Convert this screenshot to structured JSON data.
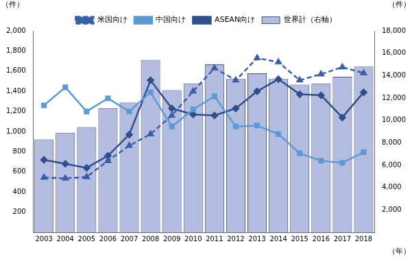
{
  "chart_data": {
    "type": "bar",
    "y_label": "（件）",
    "y2_label": "（件）",
    "x_label": "（年）",
    "categories": [
      "2003",
      "2004",
      "2005",
      "2006",
      "2007",
      "2008",
      "2009",
      "2010",
      "2011",
      "2012",
      "2013",
      "2014",
      "2015",
      "2016",
      "2017",
      "2018"
    ],
    "series": [
      {
        "name": "世界計（右軸）",
        "type": "bar",
        "axis": "y2",
        "color": "#b4bde0",
        "values": [
          8300,
          8900,
          9400,
          11100,
          11600,
          15400,
          12700,
          13300,
          15000,
          13700,
          14200,
          13700,
          13200,
          13300,
          13900,
          14800
        ]
      },
      {
        "name": "米国向け",
        "type": "line",
        "color": "#3a5fa8",
        "line_style": "dashed",
        "marker": "triangle",
        "values": [
          545,
          535,
          550,
          710,
          860,
          975,
          1160,
          1400,
          1630,
          1510,
          1730,
          1690,
          1510,
          1570,
          1640,
          1580
        ]
      },
      {
        "name": "中国向け",
        "type": "line",
        "color": "#5b9bd5",
        "line_style": "solid",
        "marker": "square",
        "values": [
          1260,
          1440,
          1200,
          1330,
          1200,
          1390,
          1050,
          1220,
          1350,
          1050,
          1060,
          975,
          785,
          710,
          690,
          795
        ]
      },
      {
        "name": "ASEAN向け",
        "type": "line",
        "color": "#2f4e8c",
        "line_style": "solid",
        "marker": "diamond",
        "values": [
          720,
          680,
          640,
          760,
          970,
          1510,
          1230,
          1170,
          1160,
          1230,
          1400,
          1520,
          1370,
          1360,
          1140,
          1390
        ]
      }
    ],
    "ylim": [
      0,
      2000
    ],
    "yticks": [
      200,
      400,
      600,
      800,
      {
        "value": 1000,
        "label": "1,000"
      },
      {
        "value": 1200,
        "label": "1,200"
      },
      {
        "value": 1400,
        "label": "1,400"
      },
      {
        "value": 1600,
        "label": "1,600"
      },
      {
        "value": 1800,
        "label": "1,800"
      },
      {
        "value": 2000,
        "label": "2,000"
      }
    ],
    "y2lim": [
      0,
      18000
    ],
    "y2ticks": [
      {
        "value": 2000,
        "label": "2,000"
      },
      {
        "value": 4000,
        "label": "4,000"
      },
      {
        "value": 6000,
        "label": "6,000"
      },
      {
        "value": 8000,
        "label": "8,000"
      },
      {
        "value": 10000,
        "label": "10,000"
      },
      {
        "value": 12000,
        "label": "12,000"
      },
      {
        "value": 14000,
        "label": "14,000"
      },
      {
        "value": 16000,
        "label": "16,000"
      },
      {
        "value": 18000,
        "label": "18,000"
      }
    ],
    "grid": false,
    "legend": "top"
  }
}
